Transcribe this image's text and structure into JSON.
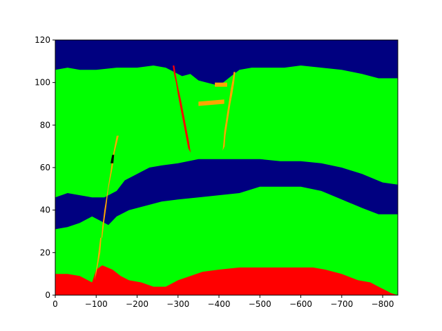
{
  "chart_data": {
    "type": "heatmap",
    "title": "",
    "xlabel": "",
    "ylabel": "",
    "xlim": [
      0,
      -837
    ],
    "ylim": [
      0,
      120
    ],
    "x_inverted": true,
    "x_ticks": [
      0,
      -100,
      -200,
      -300,
      -400,
      -500,
      -600,
      -700,
      -800
    ],
    "x_tick_labels": [
      "0",
      "−100",
      "−200",
      "−300",
      "−400",
      "−500",
      "−600",
      "−700",
      "−800"
    ],
    "y_ticks": [
      0,
      20,
      40,
      60,
      80,
      100,
      120
    ],
    "y_tick_labels": [
      "0",
      "20",
      "40",
      "60",
      "80",
      "100",
      "120"
    ],
    "grid": false,
    "colors": {
      "bottom_layer": "#ff0000",
      "middle_layer": "#00ff00",
      "channel_layer": "#000080",
      "top_layer": "#000080",
      "fault_orange": "#ffa500",
      "fault_red": "#ff0000",
      "dark_spot": "#000000"
    },
    "boundaries": {
      "red_top": [
        [
          0,
          10
        ],
        [
          -30,
          10
        ],
        [
          -60,
          9
        ],
        [
          -90,
          6
        ],
        [
          -100,
          12
        ],
        [
          -115,
          14
        ],
        [
          -140,
          12
        ],
        [
          -160,
          9
        ],
        [
          -180,
          7
        ],
        [
          -210,
          6
        ],
        [
          -240,
          4
        ],
        [
          -270,
          4
        ],
        [
          -300,
          7
        ],
        [
          -330,
          9
        ],
        [
          -360,
          11
        ],
        [
          -400,
          12
        ],
        [
          -450,
          13
        ],
        [
          -500,
          13
        ],
        [
          -550,
          13
        ],
        [
          -600,
          13
        ],
        [
          -630,
          13
        ],
        [
          -660,
          12
        ],
        [
          -700,
          10
        ],
        [
          -740,
          7
        ],
        [
          -770,
          6
        ],
        [
          -790,
          4
        ],
        [
          -810,
          2
        ],
        [
          -820,
          1
        ],
        [
          -837,
          0
        ]
      ],
      "channel_bottom": [
        [
          0,
          31
        ],
        [
          -30,
          32
        ],
        [
          -60,
          34
        ],
        [
          -90,
          37
        ],
        [
          -110,
          35
        ],
        [
          -130,
          33
        ],
        [
          -150,
          37
        ],
        [
          -180,
          40
        ],
        [
          -220,
          42
        ],
        [
          -260,
          44
        ],
        [
          -300,
          45
        ],
        [
          -350,
          46
        ],
        [
          -400,
          47
        ],
        [
          -450,
          48
        ],
        [
          -500,
          51
        ],
        [
          -550,
          51
        ],
        [
          -600,
          51
        ],
        [
          -650,
          49
        ],
        [
          -700,
          45
        ],
        [
          -750,
          41
        ],
        [
          -790,
          38
        ],
        [
          -837,
          38
        ]
      ],
      "channel_top": [
        [
          0,
          46
        ],
        [
          -30,
          48
        ],
        [
          -60,
          47
        ],
        [
          -90,
          46
        ],
        [
          -120,
          46
        ],
        [
          -150,
          49
        ],
        [
          -170,
          54
        ],
        [
          -200,
          57
        ],
        [
          -230,
          60
        ],
        [
          -260,
          61
        ],
        [
          -300,
          62
        ],
        [
          -350,
          64
        ],
        [
          -400,
          64
        ],
        [
          -450,
          64
        ],
        [
          -500,
          64
        ],
        [
          -550,
          63
        ],
        [
          -600,
          63
        ],
        [
          -650,
          62
        ],
        [
          -700,
          60
        ],
        [
          -750,
          57
        ],
        [
          -800,
          53
        ],
        [
          -837,
          52
        ]
      ],
      "top_bottom": [
        [
          0,
          106
        ],
        [
          -30,
          107
        ],
        [
          -60,
          106
        ],
        [
          -100,
          106
        ],
        [
          -150,
          107
        ],
        [
          -200,
          107
        ],
        [
          -240,
          108
        ],
        [
          -270,
          107
        ],
        [
          -290,
          105
        ],
        [
          -310,
          103
        ],
        [
          -330,
          104
        ],
        [
          -350,
          101
        ],
        [
          -370,
          100
        ],
        [
          -390,
          99
        ],
        [
          -410,
          100
        ],
        [
          -430,
          103
        ],
        [
          -450,
          106
        ],
        [
          -480,
          107
        ],
        [
          -520,
          107
        ],
        [
          -560,
          107
        ],
        [
          -600,
          108
        ],
        [
          -650,
          107
        ],
        [
          -700,
          106
        ],
        [
          -750,
          104
        ],
        [
          -790,
          102
        ],
        [
          -837,
          102
        ]
      ]
    },
    "faults": [
      {
        "color": "fault_orange",
        "points": [
          [
            -96,
            7
          ],
          [
            -103,
            16
          ],
          [
            -110,
            27
          ],
          [
            -115,
            27
          ],
          [
            -120,
            35
          ],
          [
            -125,
            42
          ],
          [
            -130,
            50
          ],
          [
            -135,
            55
          ],
          [
            -140,
            60
          ],
          [
            -145,
            67
          ],
          [
            -150,
            71
          ],
          [
            -155,
            75
          ],
          [
            -150,
            75
          ],
          [
            -145,
            70
          ],
          [
            -140,
            65
          ],
          [
            -135,
            58
          ],
          [
            -130,
            52
          ],
          [
            -125,
            46
          ],
          [
            -120,
            40
          ],
          [
            -115,
            32
          ],
          [
            -110,
            20
          ],
          [
            -100,
            10
          ]
        ]
      },
      {
        "color": "fault_red",
        "points": [
          [
            -287,
            108
          ],
          [
            -290,
            104
          ],
          [
            -295,
            100
          ],
          [
            -300,
            94
          ],
          [
            -305,
            89
          ],
          [
            -310,
            84
          ],
          [
            -315,
            79
          ],
          [
            -320,
            74
          ],
          [
            -325,
            69
          ],
          [
            -331,
            67
          ],
          [
            -327,
            72
          ],
          [
            -322,
            77
          ],
          [
            -317,
            82
          ],
          [
            -312,
            87
          ],
          [
            -307,
            92
          ],
          [
            -301,
            97
          ],
          [
            -295,
            103
          ],
          [
            -291,
            108
          ]
        ]
      },
      {
        "color": "fault_orange",
        "points": [
          [
            -436,
            105
          ],
          [
            -440,
            105
          ],
          [
            -437,
            100
          ],
          [
            -433,
            95
          ],
          [
            -428,
            90
          ],
          [
            -424,
            85
          ],
          [
            -420,
            80
          ],
          [
            -416,
            75
          ],
          [
            -414,
            70
          ],
          [
            -409,
            68
          ],
          [
            -411,
            72
          ],
          [
            -413,
            77
          ],
          [
            -417,
            82
          ],
          [
            -421,
            87
          ],
          [
            -425,
            92
          ],
          [
            -429,
            97
          ],
          [
            -433,
            101
          ]
        ]
      },
      {
        "color": "fault_orange",
        "points": [
          [
            -350,
            91
          ],
          [
            -413,
            92
          ],
          [
            -413,
            90
          ],
          [
            -350,
            89
          ]
        ]
      },
      {
        "color": "fault_orange",
        "points": [
          [
            -390,
            100
          ],
          [
            -420,
            100
          ],
          [
            -420,
            98
          ],
          [
            -390,
            98
          ]
        ]
      },
      {
        "color": "dark_spot",
        "points": [
          [
            -135,
            62
          ],
          [
            -142,
            62
          ],
          [
            -144,
            66
          ],
          [
            -139,
            66
          ]
        ]
      }
    ]
  }
}
